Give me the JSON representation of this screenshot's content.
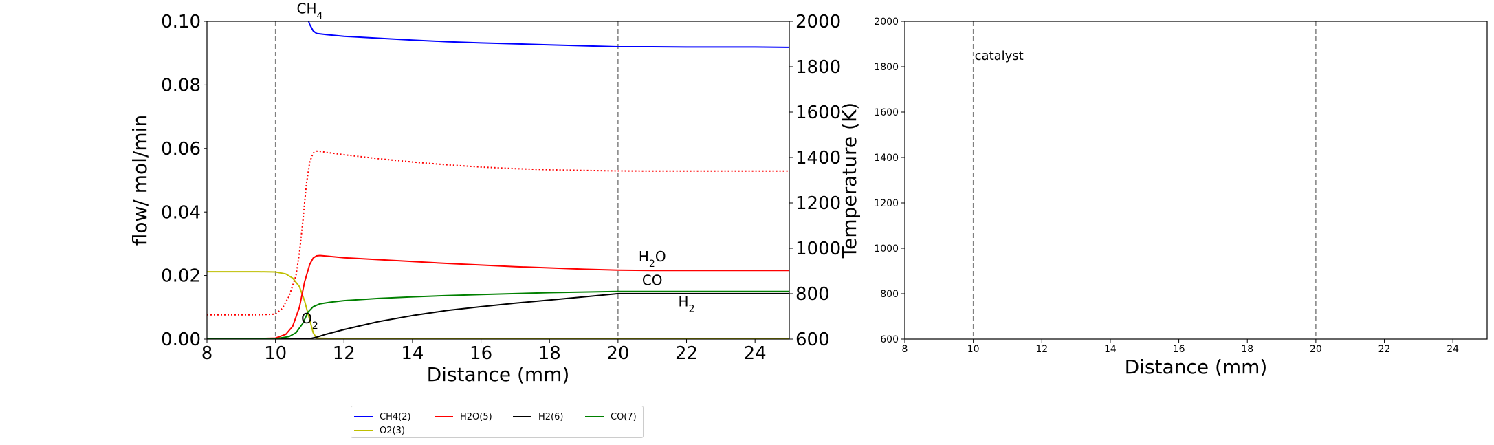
{
  "chart_data": [
    {
      "type": "line",
      "title": "",
      "xlabel": "Distance (mm)",
      "ylabel": "flow/ mol/min",
      "y2label": "Temperature (K)",
      "xlim": [
        8,
        25
      ],
      "ylim": [
        0,
        0.1
      ],
      "y2lim": [
        600,
        2000
      ],
      "xticks": [
        "8",
        "10",
        "12",
        "14",
        "16",
        "18",
        "20",
        "22",
        "24"
      ],
      "yticks": [
        "0.00",
        "0.02",
        "0.04",
        "0.06",
        "0.08",
        "0.10"
      ],
      "y2ticks": [
        "600",
        "800",
        "1000",
        "1200",
        "1400",
        "1600",
        "1800",
        "2000"
      ],
      "vlines": [
        10,
        20
      ],
      "grid": false,
      "series": [
        {
          "name": "CH4(2)",
          "axis": "left",
          "color": "#0000ff",
          "style": "solid",
          "x": [
            10.95,
            11.0,
            11.1,
            11.2,
            11.5,
            12,
            13,
            14,
            15,
            16,
            17,
            18,
            19,
            20,
            21,
            22,
            23,
            24,
            25
          ],
          "y": [
            0.1005,
            0.099,
            0.097,
            0.0962,
            0.0958,
            0.0953,
            0.0947,
            0.0941,
            0.0936,
            0.0932,
            0.0929,
            0.0926,
            0.0923,
            0.092,
            0.092,
            0.0919,
            0.0919,
            0.0919,
            0.0918
          ]
        },
        {
          "name": "O2(3)",
          "axis": "left",
          "color": "#bfbf00",
          "style": "solid",
          "x": [
            8,
            9,
            9.5,
            10,
            10.3,
            10.5,
            10.7,
            10.85,
            11.0,
            11.1,
            11.2,
            12,
            14,
            16,
            18,
            20,
            22,
            25
          ],
          "y": [
            0.0212,
            0.0212,
            0.0212,
            0.0211,
            0.0205,
            0.0192,
            0.0165,
            0.012,
            0.006,
            0.002,
            0.0003,
            0.0001,
            0.0001,
            0.0001,
            0.0001,
            0.0001,
            0.0001,
            0.0001
          ]
        },
        {
          "name": "H2O(5)",
          "axis": "left",
          "color": "#ff0000",
          "style": "solid",
          "x": [
            8,
            9,
            10,
            10.3,
            10.5,
            10.7,
            10.85,
            11.0,
            11.1,
            11.2,
            11.3,
            11.5,
            12,
            13,
            14,
            15,
            16,
            17,
            18,
            19,
            20,
            21,
            22,
            23,
            24,
            25
          ],
          "y": [
            0.0,
            0.0,
            0.0003,
            0.0015,
            0.004,
            0.01,
            0.018,
            0.0235,
            0.0255,
            0.0262,
            0.0263,
            0.0261,
            0.0256,
            0.025,
            0.0244,
            0.0238,
            0.0233,
            0.0228,
            0.0224,
            0.022,
            0.0217,
            0.0216,
            0.0216,
            0.0216,
            0.0216,
            0.0216
          ]
        },
        {
          "name": "H2(6)",
          "axis": "left",
          "color": "#000000",
          "style": "solid",
          "x": [
            8,
            10,
            11.0,
            11.2,
            11.5,
            12,
            13,
            14,
            15,
            16,
            17,
            18,
            19,
            20,
            21,
            22,
            23,
            24,
            25
          ],
          "y": [
            0.0,
            0.0,
            0.0001,
            0.0006,
            0.0016,
            0.003,
            0.0055,
            0.0074,
            0.009,
            0.0102,
            0.0113,
            0.0123,
            0.0133,
            0.0143,
            0.0143,
            0.0143,
            0.0143,
            0.0143,
            0.0143
          ]
        },
        {
          "name": "CO(7)",
          "axis": "left",
          "color": "#008000",
          "style": "solid",
          "x": [
            8,
            9,
            10,
            10.4,
            10.6,
            10.8,
            10.95,
            11.1,
            11.3,
            11.6,
            12,
            13,
            14,
            15,
            16,
            17,
            18,
            19,
            20,
            21,
            22,
            23,
            24,
            25
          ],
          "y": [
            0.0,
            0.0,
            0.0001,
            0.0008,
            0.002,
            0.005,
            0.0085,
            0.0102,
            0.0111,
            0.0116,
            0.0121,
            0.0128,
            0.0133,
            0.0137,
            0.014,
            0.0143,
            0.0146,
            0.0148,
            0.015,
            0.015,
            0.015,
            0.015,
            0.015,
            0.015
          ]
        },
        {
          "name": "Temperature",
          "axis": "right",
          "color": "#ff0000",
          "style": "dotted",
          "x": [
            8,
            9,
            9.5,
            10,
            10.2,
            10.4,
            10.6,
            10.7,
            10.8,
            10.9,
            11.0,
            11.1,
            11.2,
            11.3,
            11.5,
            12,
            13,
            14,
            15,
            16,
            17,
            18,
            19,
            20,
            21,
            22,
            23,
            24,
            25
          ],
          "y": [
            707,
            707,
            707,
            710,
            735,
            790,
            880,
            980,
            1120,
            1280,
            1380,
            1420,
            1428,
            1427,
            1422,
            1412,
            1395,
            1380,
            1368,
            1358,
            1351,
            1346,
            1343,
            1341,
            1340,
            1340,
            1340,
            1340,
            1340
          ]
        }
      ],
      "annotations": [
        {
          "text": "CH4",
          "sub": "4",
          "base": "CH",
          "x": 11.0,
          "y": 0.1025,
          "color": "#0000ff"
        },
        {
          "text": "H2O",
          "sub": "2",
          "base": "H",
          "tail": "O",
          "x": 21.0,
          "y": 0.0245,
          "color": "#ff0000"
        },
        {
          "text": "CO",
          "base": "CO",
          "x": 21.0,
          "y": 0.017,
          "color": "#008000"
        },
        {
          "text": "H2",
          "sub": "2",
          "base": "H",
          "x": 22.0,
          "y": 0.0103,
          "color": "#000000"
        },
        {
          "text": "O2",
          "sub": "2",
          "base": "O",
          "x": 11.0,
          "y": 0.005,
          "color": "#bfbf00"
        }
      ]
    },
    {
      "type": "line",
      "title": "",
      "xlabel": "Distance (mm)",
      "ylabel": "",
      "xlim": [
        8,
        25
      ],
      "ylim": [
        600,
        2000
      ],
      "xticks": [
        "8",
        "10",
        "12",
        "14",
        "16",
        "18",
        "20",
        "22",
        "24"
      ],
      "yticks": [
        "600",
        "800",
        "1000",
        "1200",
        "1400",
        "1600",
        "1800",
        "2000"
      ],
      "vlines": [
        10,
        20
      ],
      "grid": false,
      "series": [],
      "annotations": [
        {
          "text": "catalyst",
          "x": 10.0,
          "y": 1830,
          "color": "#000000"
        }
      ]
    }
  ],
  "legend": {
    "placement": "bottom-center",
    "entries": [
      {
        "label": "CH4(2)",
        "color": "#0000ff"
      },
      {
        "label": "H2O(5)",
        "color": "#ff0000"
      },
      {
        "label": "H2(6)",
        "color": "#000000"
      },
      {
        "label": "CO(7)",
        "color": "#008000"
      },
      {
        "label": "O2(3)",
        "color": "#bfbf00"
      }
    ]
  }
}
